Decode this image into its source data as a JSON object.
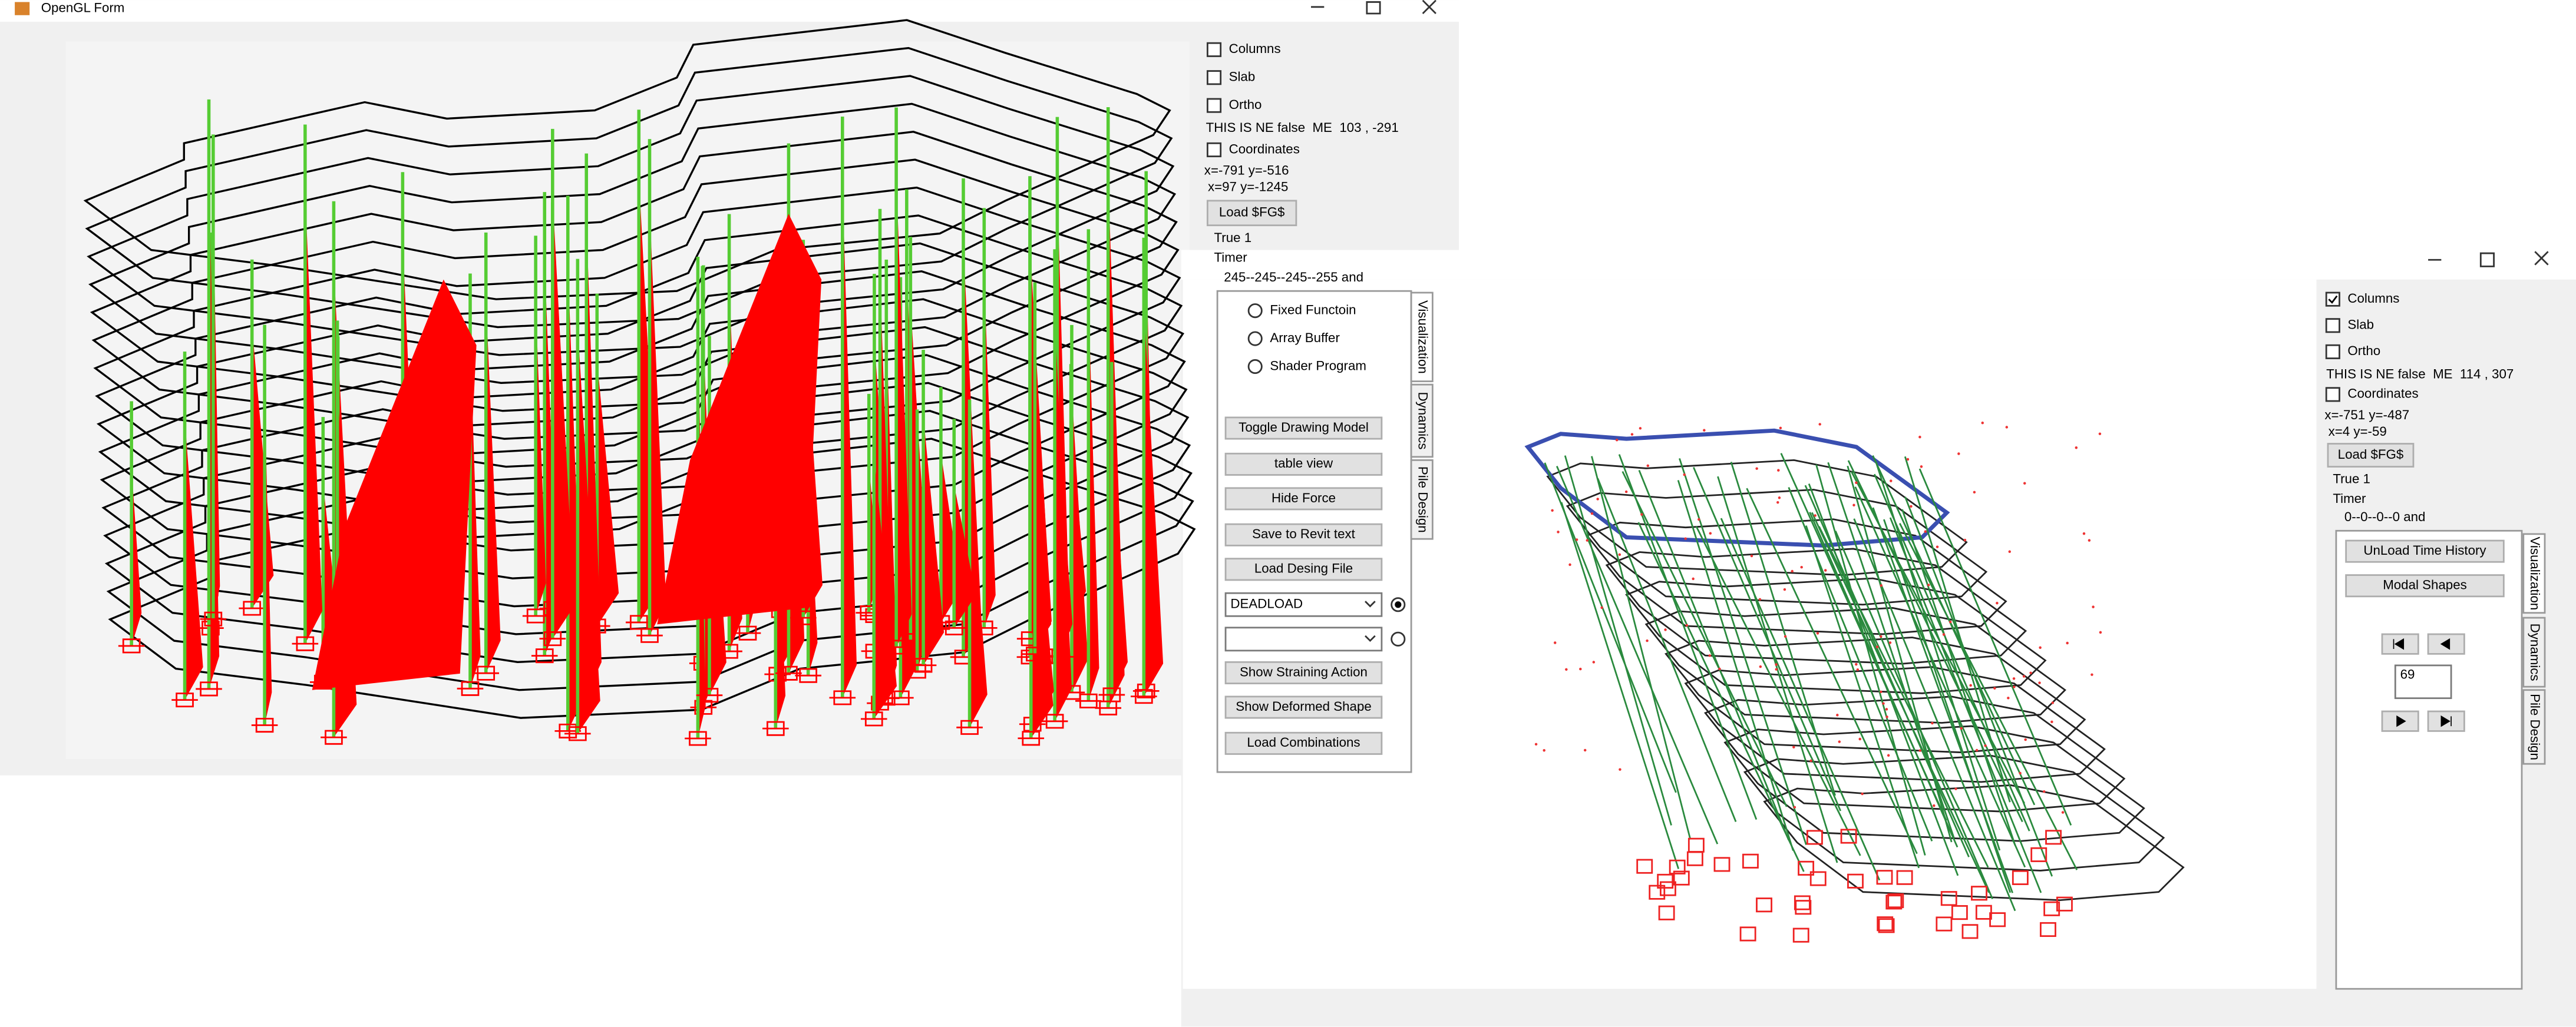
{
  "window1": {
    "title": "OpenGL Form",
    "checkboxes": [
      {
        "label": "Columns",
        "checked": false
      },
      {
        "label": "Slab",
        "checked": false
      },
      {
        "label": "Ortho",
        "checked": false
      }
    ],
    "status": "THIS IS NE false  ME  103 , -291",
    "coordinates_checkbox": {
      "label": "Coordinates",
      "checked": false
    },
    "coords": [
      "x=-791 y=-516",
      " x=97 y=-1245"
    ],
    "load_button": "Load $FG$",
    "info": [
      "True 1",
      "Timer",
      "245--245--245--255 and"
    ],
    "tabs": [
      "Visualization",
      "Dynamics",
      "Pile Design"
    ],
    "radios": [
      "Fixed Functoin",
      "Array Buffer",
      "Shader Program"
    ],
    "buttons": [
      "Toggle Drawing Model",
      "table view",
      "Hide Force",
      "Save to Revit text",
      "Load Desing File"
    ],
    "dropdown": "DEADLOAD",
    "buttons2": [
      "Show Straining Action",
      "Show Deformed Shape",
      "Load Combinations"
    ]
  },
  "window2": {
    "checkboxes": [
      {
        "label": "Columns",
        "checked": true
      },
      {
        "label": "Slab",
        "checked": false
      },
      {
        "label": "Ortho",
        "checked": false
      }
    ],
    "status": "THIS IS NE false  ME  114 , 307",
    "coordinates_checkbox": {
      "label": "Coordinates",
      "checked": false
    },
    "coords": [
      "x=-751 y=-487",
      " x=4 y=-59"
    ],
    "load_button": "Load $FG$",
    "info": [
      "True 1",
      "Timer",
      "0--0--0--0 and"
    ],
    "buttons": [
      "UnLoad Time History",
      "Modal Shapes"
    ],
    "frame_input": "69",
    "tabs": [
      "Visualization",
      "Dynamics",
      "Pile Design"
    ]
  }
}
